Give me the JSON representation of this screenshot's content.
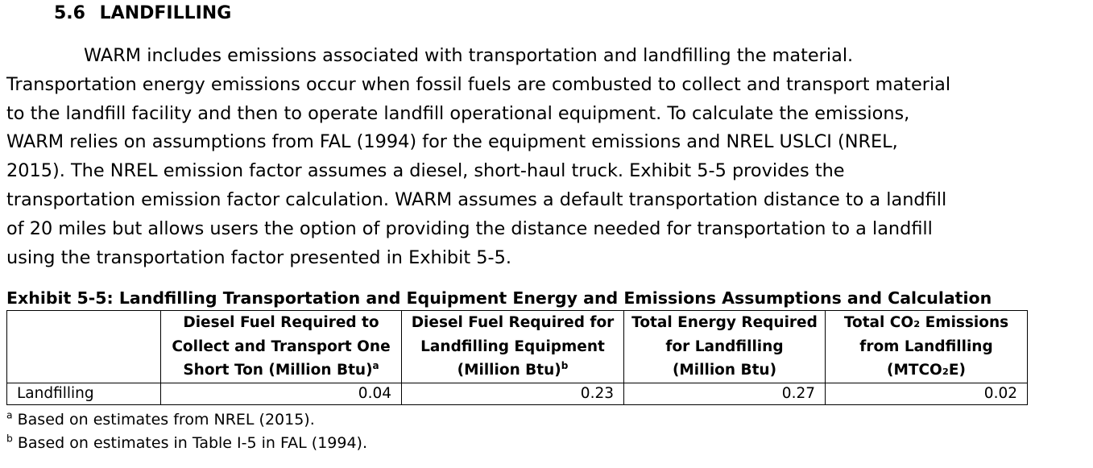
{
  "section": {
    "number": "5.6",
    "title": "LANDFILLING"
  },
  "paragraph": {
    "lines": [
      "WARM includes emissions associated with transportation and landfilling the material.",
      "Transportation energy emissions occur when fossil fuels are combusted to collect and transport material",
      "to the landfill facility and then to operate landfill operational equipment. To calculate the emissions,",
      "WARM relies on assumptions from FAL (1994) for the equipment emissions and NREL USLCI (NREL,",
      "2015). The NREL emission factor assumes a diesel, short-haul truck. Exhibit 5-5 provides the",
      "transportation emission factor calculation. WARM assumes a default transportation distance to a landfill",
      "of 20 miles but allows users the option of providing the distance needed for transportation to a landfill",
      "using the transportation factor presented in Exhibit 5-5."
    ]
  },
  "exhibit": {
    "title": "Exhibit 5-5: Landfilling Transportation and Equipment Energy and Emissions Assumptions and Calculation",
    "columns": [
      {
        "line1": "Diesel Fuel Required to",
        "line2": "Collect and Transport One",
        "line3": "Short Ton (Million Btu)",
        "note": "a"
      },
      {
        "line1": "Diesel Fuel Required for",
        "line2": "Landfilling Equipment",
        "line3": "(Million Btu)",
        "note": "b"
      },
      {
        "line1": "Total Energy Required",
        "line2": "for Landfilling",
        "line3": "(Million Btu)",
        "note": ""
      },
      {
        "line1": "Total CO₂ Emissions",
        "line2": "from Landfilling",
        "line3": "(MTCO₂E)",
        "note": ""
      }
    ],
    "rows": [
      {
        "label": "Landfilling",
        "values": [
          "0.04",
          "0.23",
          "0.27",
          "0.02"
        ]
      }
    ]
  },
  "footnotes": [
    {
      "marker": "a",
      "text": " Based on estimates from NREL (2015)."
    },
    {
      "marker": "b",
      "text": " Based on estimates in Table I-5 in FAL (1994)."
    }
  ]
}
